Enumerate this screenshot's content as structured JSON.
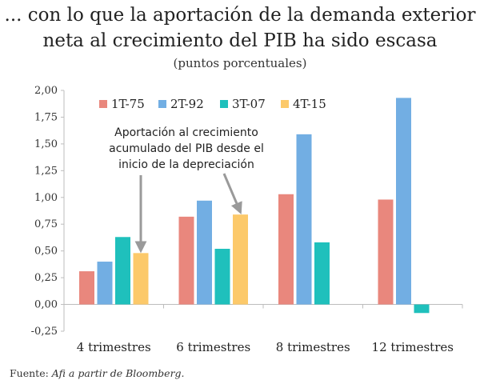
{
  "title_line1": "... con lo que la aportación de la demanda exterior",
  "title_line2": "neta al crecimiento del PIB ha sido escasa",
  "subtitle": "(puntos porcentuales)",
  "source_prefix": "Fuente: ",
  "source_text": "Afi a partir de Bloomberg.",
  "chart_data": {
    "type": "bar",
    "categories": [
      "4 trimestres",
      "6 trimestres",
      "8 trimestres",
      "12 trimestres"
    ],
    "series": [
      {
        "name": "1T-75",
        "color": "#e9877d",
        "values": [
          0.31,
          0.82,
          1.03,
          0.98
        ]
      },
      {
        "name": "2T-92",
        "color": "#72aee3",
        "values": [
          0.4,
          0.97,
          1.59,
          1.93
        ]
      },
      {
        "name": "3T-07",
        "color": "#1fc0bc",
        "values": [
          0.63,
          0.52,
          0.58,
          -0.08
        ]
      },
      {
        "name": "4T-15",
        "color": "#fcc96a",
        "values": [
          0.48,
          0.84,
          null,
          null
        ]
      }
    ],
    "ylim": [
      -0.25,
      2.0
    ],
    "yticks": [
      "-0,25",
      "0,00",
      "0,25",
      "0,50",
      "0,75",
      "1,00",
      "1,25",
      "1,50",
      "1,75",
      "2,00"
    ],
    "ytick_values": [
      -0.25,
      0,
      0.25,
      0.5,
      0.75,
      1.0,
      1.25,
      1.5,
      1.75,
      2.0
    ],
    "legend_position": "top",
    "grid": false,
    "annotation": {
      "lines": [
        "Aportación al crecimiento",
        "acumulado del PIB desde el",
        "inicio de la depreciación"
      ]
    }
  }
}
